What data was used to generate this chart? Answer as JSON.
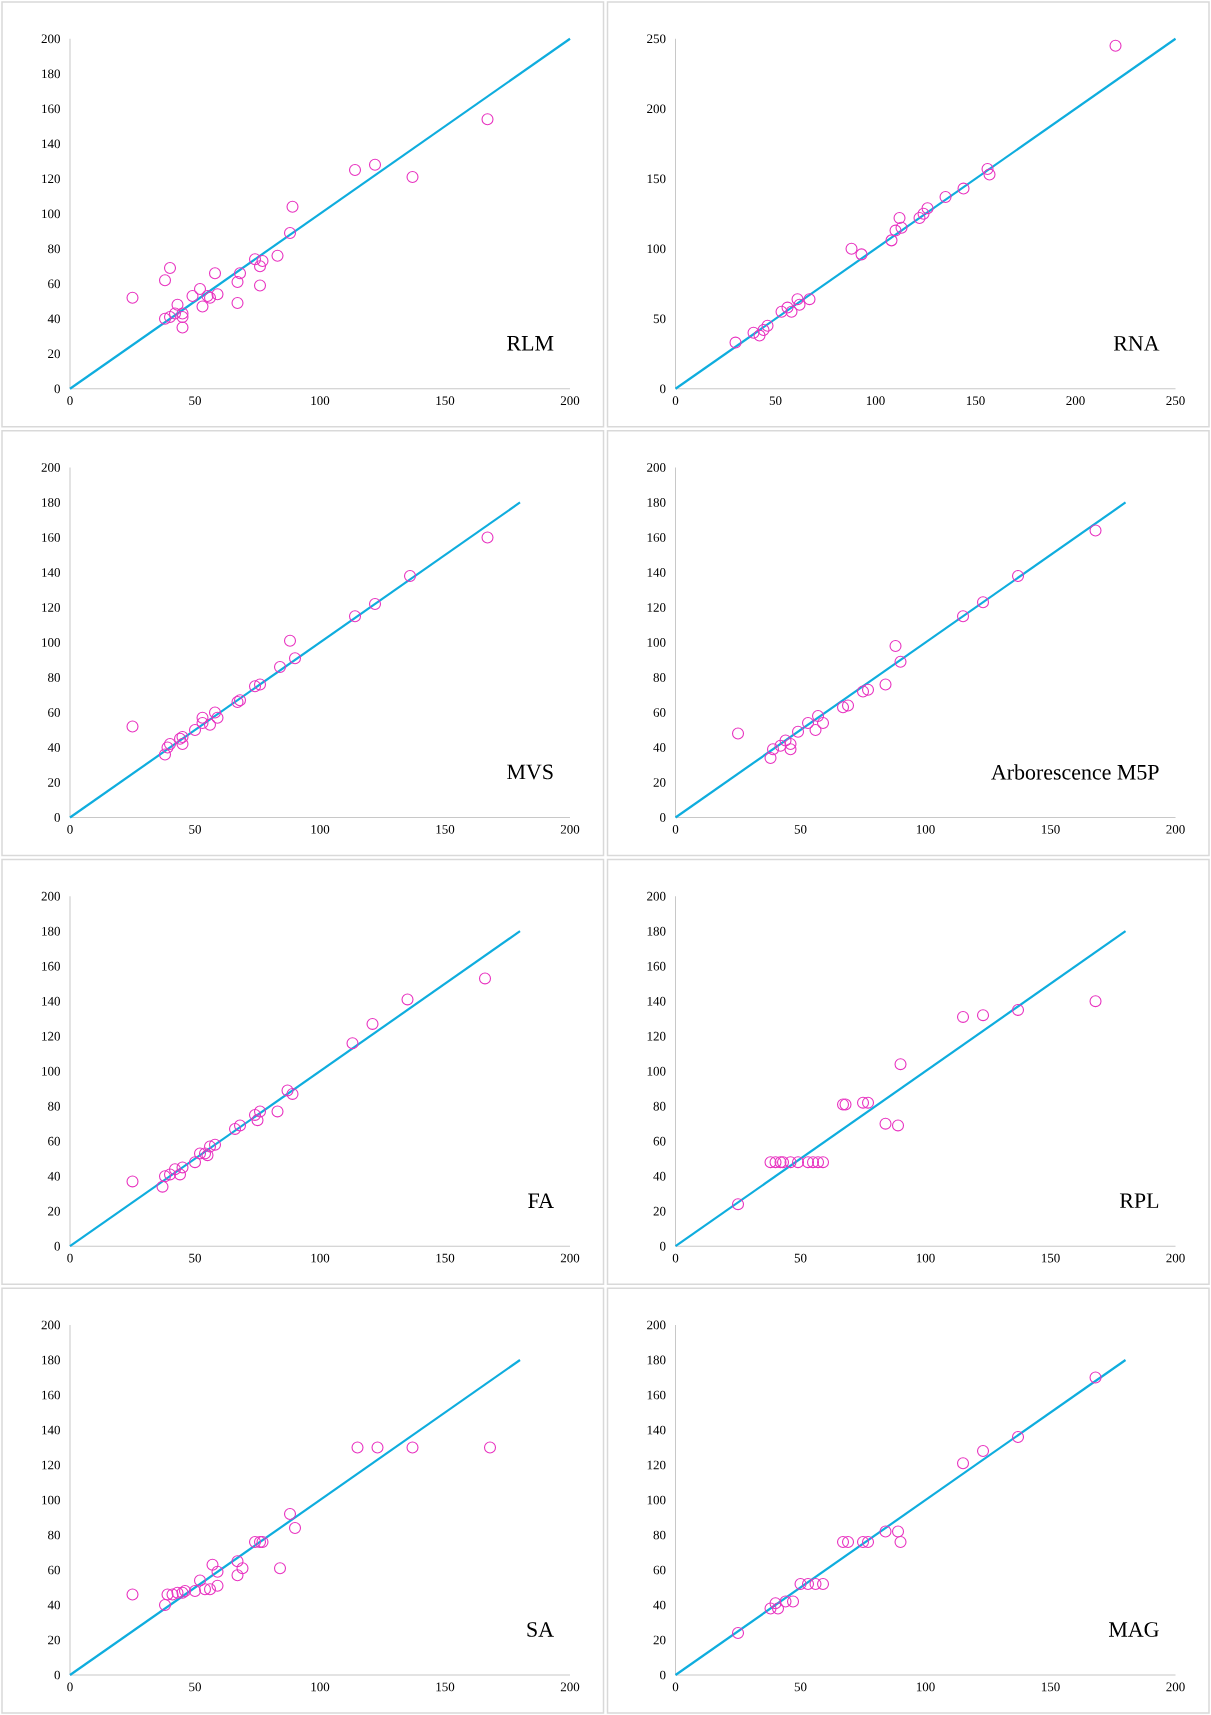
{
  "chart_data": [
    {
      "type": "scatter",
      "title": "RLM",
      "xlim": [
        0,
        200
      ],
      "ylim": [
        0,
        200
      ],
      "xticks": [
        0,
        50,
        100,
        150,
        200
      ],
      "yticks": [
        0,
        20,
        40,
        60,
        80,
        100,
        120,
        140,
        160,
        180,
        200
      ],
      "series": [
        {
          "type": "scatter",
          "marker": "circle",
          "color": "#e833c0",
          "x": [
            25,
            38,
            40,
            38,
            40,
            43,
            42,
            45,
            45,
            45,
            49,
            52,
            53,
            55,
            56,
            58,
            59,
            67,
            68,
            67,
            74,
            76,
            77,
            76,
            83,
            88,
            89,
            114,
            122,
            137,
            167
          ],
          "values": [
            52,
            62,
            69,
            40,
            41,
            48,
            43,
            43,
            41,
            35,
            53,
            57,
            47,
            53,
            52,
            66,
            54,
            61,
            66,
            49,
            74,
            70,
            73,
            59,
            76,
            89,
            104,
            125,
            128,
            121,
            154
          ]
        },
        {
          "type": "line",
          "marker": "none",
          "color": "#0fadde",
          "x": [
            0,
            200
          ],
          "values": [
            0,
            200
          ]
        }
      ]
    },
    {
      "type": "scatter",
      "title": "RNA",
      "xlim": [
        0,
        250
      ],
      "ylim": [
        0,
        250
      ],
      "xticks": [
        0,
        50,
        100,
        150,
        200,
        250
      ],
      "yticks": [
        0,
        50,
        100,
        150,
        200,
        250
      ],
      "series": [
        {
          "type": "scatter",
          "marker": "circle",
          "color": "#e833c0",
          "x": [
            30,
            39,
            42,
            44,
            46,
            53,
            56,
            58,
            62,
            61,
            67,
            88,
            93,
            108,
            110,
            112,
            113,
            122,
            124,
            126,
            135,
            144,
            156,
            157,
            220
          ],
          "values": [
            33,
            40,
            38,
            42,
            45,
            55,
            58,
            55,
            60,
            64,
            64,
            100,
            96,
            106,
            113,
            122,
            115,
            122,
            125,
            129,
            137,
            143,
            157,
            153,
            245
          ]
        },
        {
          "type": "line",
          "marker": "none",
          "color": "#0fadde",
          "x": [
            0,
            250
          ],
          "values": [
            0,
            250
          ]
        }
      ]
    },
    {
      "type": "scatter",
      "title": "MVS",
      "xlim": [
        0,
        200
      ],
      "ylim": [
        0,
        200
      ],
      "xticks": [
        0,
        50,
        100,
        150,
        200
      ],
      "yticks": [
        0,
        20,
        40,
        60,
        80,
        100,
        120,
        140,
        160,
        180,
        200
      ],
      "series": [
        {
          "type": "scatter",
          "marker": "circle",
          "color": "#e833c0",
          "x": [
            25,
            38,
            39,
            40,
            44,
            45,
            45,
            50,
            53,
            53,
            56,
            58,
            59,
            67,
            68,
            74,
            76,
            84,
            88,
            90,
            114,
            122,
            136,
            167
          ],
          "values": [
            52,
            36,
            40,
            42,
            45,
            46,
            42,
            50,
            57,
            54,
            53,
            60,
            57,
            66,
            67,
            75,
            76,
            86,
            101,
            91,
            115,
            122,
            138,
            160
          ]
        },
        {
          "type": "line",
          "marker": "none",
          "color": "#0fadde",
          "x": [
            0,
            180
          ],
          "values": [
            0,
            180
          ]
        }
      ]
    },
    {
      "type": "scatter",
      "title": "Arborescence M5P",
      "xlim": [
        0,
        200
      ],
      "ylim": [
        0,
        200
      ],
      "xticks": [
        0,
        50,
        100,
        150,
        200
      ],
      "yticks": [
        0,
        20,
        40,
        60,
        80,
        100,
        120,
        140,
        160,
        180,
        200
      ],
      "series": [
        {
          "type": "scatter",
          "marker": "circle",
          "color": "#e833c0",
          "x": [
            25,
            38,
            39,
            42,
            44,
            46,
            46,
            49,
            53,
            56,
            57,
            59,
            67,
            69,
            75,
            77,
            84,
            88,
            90,
            115,
            123,
            137,
            168
          ],
          "values": [
            48,
            34,
            39,
            41,
            44,
            42,
            39,
            49,
            54,
            50,
            58,
            54,
            63,
            64,
            72,
            73,
            76,
            98,
            89,
            115,
            123,
            138,
            164
          ]
        },
        {
          "type": "line",
          "marker": "none",
          "color": "#0fadde",
          "x": [
            0,
            180
          ],
          "values": [
            0,
            180
          ]
        }
      ]
    },
    {
      "type": "scatter",
      "title": "FA",
      "xlim": [
        0,
        200
      ],
      "ylim": [
        0,
        200
      ],
      "xticks": [
        0,
        50,
        100,
        150,
        200
      ],
      "yticks": [
        0,
        20,
        40,
        60,
        80,
        100,
        120,
        140,
        160,
        180,
        200
      ],
      "series": [
        {
          "type": "scatter",
          "marker": "circle",
          "color": "#e833c0",
          "x": [
            25,
            37,
            38,
            40,
            42,
            45,
            44,
            50,
            52,
            54,
            55,
            56,
            58,
            66,
            68,
            74,
            75,
            76,
            83,
            87,
            89,
            113,
            121,
            135,
            166
          ],
          "values": [
            37,
            34,
            40,
            41,
            44,
            45,
            41,
            48,
            53,
            53,
            52,
            57,
            58,
            67,
            69,
            75,
            72,
            77,
            77,
            89,
            87,
            116,
            127,
            141,
            153
          ]
        },
        {
          "type": "line",
          "marker": "none",
          "color": "#0fadde",
          "x": [
            0,
            180
          ],
          "values": [
            0,
            180
          ]
        }
      ]
    },
    {
      "type": "scatter",
      "title": "RPL",
      "xlim": [
        0,
        200
      ],
      "ylim": [
        0,
        200
      ],
      "xticks": [
        0,
        50,
        100,
        150,
        200
      ],
      "yticks": [
        0,
        20,
        40,
        60,
        80,
        100,
        120,
        140,
        160,
        180,
        200
      ],
      "series": [
        {
          "type": "scatter",
          "marker": "circle",
          "color": "#e833c0",
          "x": [
            25,
            38,
            40,
            42,
            43,
            46,
            49,
            53,
            55,
            57,
            59,
            67,
            68,
            75,
            77,
            84,
            89,
            90,
            115,
            123,
            137,
            168
          ],
          "values": [
            24,
            48,
            48,
            48,
            48,
            48,
            48,
            48,
            48,
            48,
            48,
            81,
            81,
            82,
            82,
            70,
            69,
            104,
            131,
            132,
            135,
            140
          ]
        },
        {
          "type": "line",
          "marker": "none",
          "color": "#0fadde",
          "x": [
            0,
            180
          ],
          "values": [
            0,
            180
          ]
        }
      ]
    },
    {
      "type": "scatter",
      "title": "SA",
      "xlim": [
        0,
        200
      ],
      "ylim": [
        0,
        200
      ],
      "xticks": [
        0,
        50,
        100,
        150,
        200
      ],
      "yticks": [
        0,
        20,
        40,
        60,
        80,
        100,
        120,
        140,
        160,
        180,
        200
      ],
      "series": [
        {
          "type": "scatter",
          "marker": "circle",
          "color": "#e833c0",
          "x": [
            25,
            38,
            39,
            41,
            43,
            45,
            46,
            50,
            52,
            54,
            56,
            57,
            59,
            59,
            67,
            67,
            69,
            74,
            76,
            77,
            84,
            88,
            90,
            115,
            123,
            137,
            168
          ],
          "values": [
            46,
            40,
            46,
            46,
            47,
            47,
            48,
            48,
            54,
            49,
            49,
            63,
            59,
            51,
            57,
            65,
            61,
            76,
            76,
            76,
            61,
            92,
            84,
            130,
            130,
            130,
            130
          ]
        },
        {
          "type": "line",
          "marker": "none",
          "color": "#0fadde",
          "x": [
            0,
            180
          ],
          "values": [
            0,
            180
          ]
        }
      ]
    },
    {
      "type": "scatter",
      "title": "MAG",
      "xlim": [
        0,
        200
      ],
      "ylim": [
        0,
        200
      ],
      "xticks": [
        0,
        50,
        100,
        150,
        200
      ],
      "yticks": [
        0,
        20,
        40,
        60,
        80,
        100,
        120,
        140,
        160,
        180,
        200
      ],
      "series": [
        {
          "type": "scatter",
          "marker": "circle",
          "color": "#e833c0",
          "x": [
            25,
            38,
            40,
            41,
            44,
            47,
            50,
            53,
            56,
            59,
            67,
            69,
            75,
            77,
            84,
            89,
            90,
            115,
            123,
            137,
            168
          ],
          "values": [
            24,
            38,
            41,
            38,
            42,
            42,
            52,
            52,
            52,
            52,
            76,
            76,
            76,
            76,
            82,
            82,
            76,
            121,
            128,
            136,
            170
          ]
        },
        {
          "type": "line",
          "marker": "none",
          "color": "#0fadde",
          "x": [
            0,
            180
          ],
          "values": [
            0,
            180
          ]
        }
      ]
    }
  ]
}
